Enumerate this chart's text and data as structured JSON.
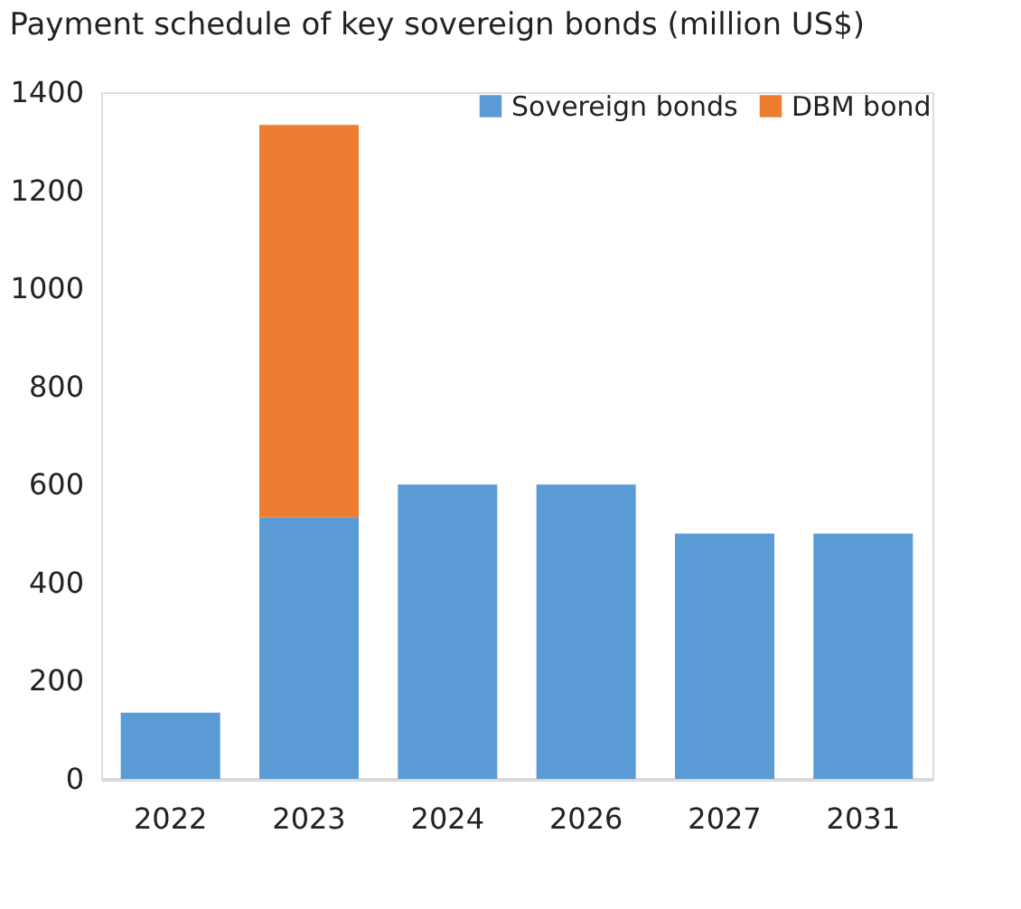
{
  "chart_data": {
    "type": "bar",
    "title": "Payment schedule of key sovereign bonds (million US$)",
    "categories": [
      "2022",
      "2023",
      "2024",
      "2026",
      "2027",
      "2031"
    ],
    "stacked": true,
    "series": [
      {
        "name": "Sovereign bonds",
        "color": "#5b9bd5",
        "values": [
          135,
          533,
          600,
          600,
          500,
          500
        ]
      },
      {
        "name": "DBM bond",
        "color": "#ed7d31",
        "values": [
          null,
          800,
          null,
          null,
          null,
          null
        ]
      }
    ],
    "ylim": [
      0,
      1400
    ],
    "yticks": [
      0,
      200,
      400,
      600,
      800,
      1000,
      1200,
      1400
    ],
    "grid": false,
    "legend": "top right"
  }
}
